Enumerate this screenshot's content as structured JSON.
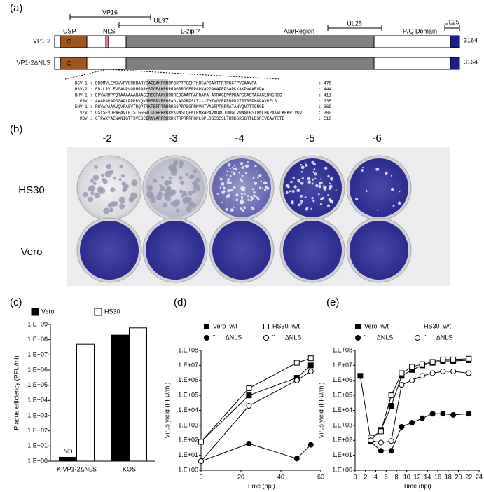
{
  "panel_labels": [
    "(a)",
    "(b)",
    "(c)",
    "(d)",
    "(e)"
  ],
  "diagram": {
    "rows": [
      {
        "name": "VP1-2",
        "length": "3164"
      },
      {
        "name": "VP1-2ΔNLS",
        "length": "3164"
      }
    ],
    "domains": [
      "USP",
      "NLS",
      "L-zip ?",
      "Ala/Region",
      "P/Q Domain"
    ],
    "domain_letter": "C",
    "brackets": [
      "VP16",
      "UL37",
      "UL25",
      "UL25"
    ],
    "alignment": [
      {
        "name": "HSV-1 :",
        "seq": "DDDMVLEMGVVPVGRHRARYSAGEAKRRRRPDRPTPGEKTKRSAPSAKTPRTPKGTPVGAAVPA",
        "end": ": 476"
      },
      {
        "name": "HSV-2 :",
        "seq": "ED-LRVLEVGAVPVGRHRARYSTGEAKRRRRAGRRGGERPAPKAPPAKAPRPSAPKKAKPVAAEVPA",
        "end": ": 444"
      },
      {
        "name": "BHV-1 :",
        "seq": "EPVARMPPQTAAAAAARAAGERSGPAKKRRRREDGAAPRAPRAPA-ARRAGEPPPRAPGGASTAGAGEDWGRGG",
        "end": ": 411"
      },
      {
        "name": "PRV :",
        "seq": "AAAPAPAPGGAPLPPPRVQKRRSRPVRRRRAD-AGPRPSLT---THTVGGRPRRPRPTRTRSPMGPAVRELS",
        "end": ": 335"
      },
      {
        "name": "EHV-1 :",
        "seq": "RGVAPAAAVQVRASVTRQPTRKPERPTRRRRGSPRPSGPRNVHTVAGRPPRRNATANVQNPTTGNGE",
        "end": ": 369"
      },
      {
        "name": "VZV :",
        "seq": "CSYSEVDPWHAVLETSTGSGVLDCRRRRRRPKDNSLQENLPMRAPAVADACIDDGLVWNNTHSTDNLHKPAKVLKFKPTVDV",
        "end": ": 380"
      },
      {
        "name": "MDV :",
        "seq": "GTPAKYAEWKNIGTTSVEGCIRNYARRRRRRKTRPRPRRGNLSPLDGSSSSLTRRHSRSGRTLESRIVEAVTSTE",
        "end": ": 518"
      }
    ]
  },
  "photo": {
    "dilutions": [
      "-2",
      "-3",
      "-4",
      "-5",
      "-6"
    ],
    "rows": [
      "HS30",
      "Vero"
    ]
  },
  "chart_data": [
    {
      "type": "bar",
      "categories": [
        "K.VP1-2ΔNLS",
        "KOS"
      ],
      "ylabel": "Plaque efficiency (PFU/ml)",
      "log": true,
      "ylim": [
        1,
        1000000000
      ],
      "yticks": [
        {
          "value": 1,
          "label": "1.E+00"
        },
        {
          "value": 10,
          "label": "1.E+01"
        },
        {
          "value": 100,
          "label": "1.E+02"
        },
        {
          "value": 1000,
          "label": "1.E+03"
        },
        {
          "value": 10000,
          "label": "1.E+04"
        },
        {
          "value": 100000,
          "label": "1.E+05"
        },
        {
          "value": 1000000,
          "label": "1.E+06"
        },
        {
          "value": 10000000,
          "label": "1.E+07"
        },
        {
          "value": 100000000,
          "label": "1.E+08"
        },
        {
          "value": 1000000000,
          "label": "1.E+09"
        }
      ],
      "annotation": "ND",
      "series": [
        {
          "name": "Vero",
          "color": "#000000",
          "filled": true,
          "values": [
            1.8,
            200000000
          ]
        },
        {
          "name": "HS30",
          "color": "#000000",
          "filled": false,
          "values": [
            50000000,
            600000000
          ]
        }
      ]
    },
    {
      "type": "line",
      "xlabel": "Time (hpi)",
      "ylabel": "Virus yield (PFU/ml)",
      "log": true,
      "x": [
        0,
        24,
        48,
        55
      ],
      "xlim": [
        0,
        60
      ],
      "xticks": [
        0,
        20,
        40,
        60
      ],
      "ylim": [
        1,
        100000000
      ],
      "yticks": [
        {
          "value": 1,
          "label": "1.E+00"
        },
        {
          "value": 10,
          "label": "1.E+01"
        },
        {
          "value": 100,
          "label": "1.E+02"
        },
        {
          "value": 1000,
          "label": "1.E+03"
        },
        {
          "value": 10000,
          "label": "1.E+04"
        },
        {
          "value": 100000,
          "label": "1.E+05"
        },
        {
          "value": 1000000,
          "label": "1.E+06"
        },
        {
          "value": 10000000,
          "label": "1.E+07"
        },
        {
          "value": 100000000,
          "label": "1.E+08"
        }
      ],
      "series": [
        {
          "name": "Vero  w/t",
          "color": "#000000",
          "marker": "square",
          "filled": true,
          "values": [
            80,
            100000,
            1500000,
            10000000
          ]
        },
        {
          "name": "HS30  w/t",
          "color": "#000000",
          "marker": "square",
          "filled": false,
          "values": [
            80,
            300000,
            15000000,
            30000000
          ]
        },
        {
          "name": "\"      ΔNLS",
          "color": "#000000",
          "marker": "circle",
          "filled": true,
          "values": [
            4,
            60,
            6,
            50
          ]
        },
        {
          "name": "\"      ΔNLS",
          "color": "#000000",
          "marker": "circle",
          "filled": false,
          "values": [
            4,
            20000,
            1000000,
            4000000
          ]
        }
      ]
    },
    {
      "type": "line",
      "xlabel": "Time (hpi)",
      "ylabel": "Virus yield (PFU/ml)",
      "log": true,
      "x": [
        1,
        3,
        5,
        7,
        9,
        11,
        13,
        15,
        17,
        19,
        22
      ],
      "xlim": [
        0,
        24
      ],
      "xticks": [
        0,
        2,
        4,
        6,
        8,
        10,
        12,
        14,
        16,
        18,
        20,
        22,
        24
      ],
      "ylim": [
        1,
        100000000
      ],
      "yticks": [
        {
          "value": 1,
          "label": "1.E+00"
        },
        {
          "value": 10,
          "label": "1.E+01"
        },
        {
          "value": 100,
          "label": "1.E+02"
        },
        {
          "value": 1000,
          "label": "1.E+03"
        },
        {
          "value": 10000,
          "label": "1.E+04"
        },
        {
          "value": 100000,
          "label": "1.E+05"
        },
        {
          "value": 1000000,
          "label": "1.E+06"
        },
        {
          "value": 10000000,
          "label": "1.E+07"
        },
        {
          "value": 100000000,
          "label": "1.E+08"
        }
      ],
      "series": [
        {
          "name": "Vero  w/t",
          "color": "#000000",
          "marker": "square",
          "filled": true,
          "values": [
            2000000,
            100,
            500,
            20000,
            2000000,
            5000000,
            10000000,
            15000000,
            20000000,
            20000000,
            22000000
          ]
        },
        {
          "name": "HS30  w/t",
          "color": "#000000",
          "marker": "square",
          "filled": false,
          "values": [
            null,
            150,
            400,
            100000,
            3000000,
            8000000,
            12000000,
            17000000,
            25000000,
            25000000,
            28000000
          ]
        },
        {
          "name": "\"      ΔNLS",
          "color": "#000000",
          "marker": "circle",
          "filled": true,
          "values": [
            null,
            80,
            20,
            20,
            800,
            1500,
            3000,
            6000,
            6000,
            5000,
            6000
          ]
        },
        {
          "name": "\"      ΔNLS",
          "color": "#000000",
          "marker": "circle",
          "filled": false,
          "values": [
            null,
            100,
            70,
            90,
            500000,
            1000000,
            2000000,
            3000000,
            4000000,
            4000000,
            3000000
          ]
        }
      ]
    }
  ]
}
